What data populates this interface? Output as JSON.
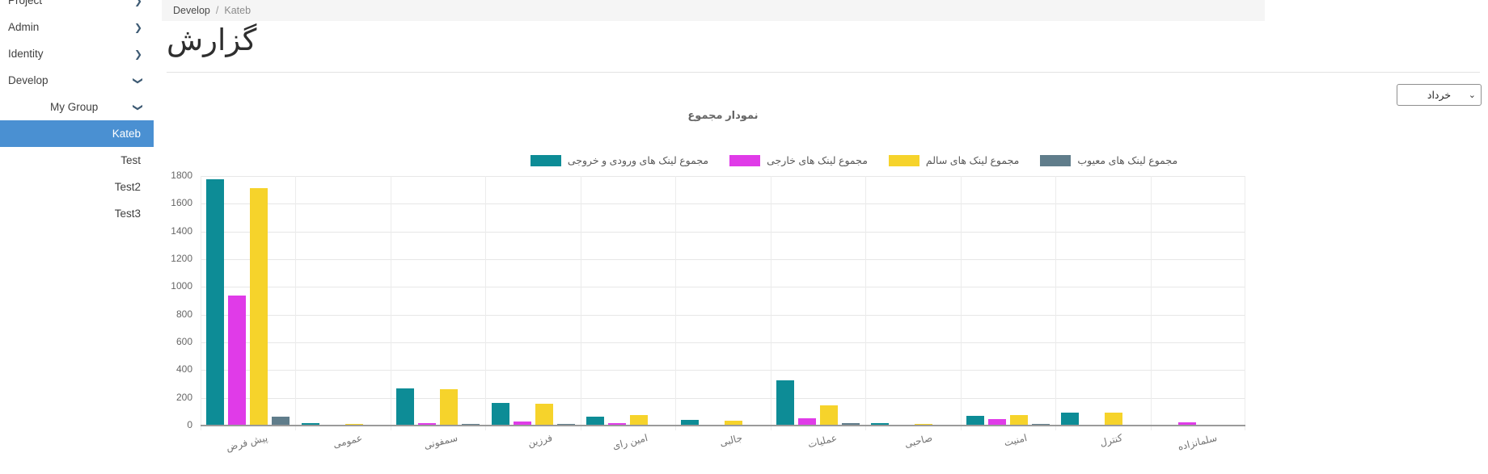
{
  "sidebar": {
    "items": [
      {
        "label": "Project",
        "level": 1,
        "expandable": true,
        "state": "collapsed",
        "icon": "chevron-right-icon",
        "selected": false
      },
      {
        "label": "Admin",
        "level": 1,
        "expandable": true,
        "state": "collapsed",
        "icon": "chevron-right-icon",
        "selected": false
      },
      {
        "label": "Identity",
        "level": 1,
        "expandable": true,
        "state": "collapsed",
        "icon": "chevron-right-icon",
        "selected": false
      },
      {
        "label": "Develop",
        "level": 1,
        "expandable": true,
        "state": "expanded",
        "icon": "chevron-down-icon",
        "selected": false
      },
      {
        "label": "My Group",
        "level": 2,
        "expandable": true,
        "state": "expanded",
        "icon": "chevron-down-icon",
        "selected": false
      },
      {
        "label": "Kateb",
        "level": 3,
        "expandable": false,
        "state": "none",
        "icon": "",
        "selected": true
      },
      {
        "label": "Test",
        "level": 3,
        "expandable": false,
        "state": "none",
        "icon": "",
        "selected": false
      },
      {
        "label": "Test2",
        "level": 3,
        "expandable": false,
        "state": "none",
        "icon": "",
        "selected": false
      },
      {
        "label": "Test3",
        "level": 3,
        "expandable": false,
        "state": "none",
        "icon": "",
        "selected": false
      }
    ]
  },
  "breadcrumb": {
    "items": [
      "Develop",
      "Kateb"
    ],
    "separator": "/"
  },
  "page": {
    "title": "گزارش"
  },
  "filter": {
    "selected_value": "خرداد",
    "icon": "chevron-down-icon"
  },
  "colors": {
    "selected_row": "#4a90d2",
    "series_teal": "#0D8C96",
    "series_magenta": "#E03BE8",
    "series_yellow": "#F6D32B",
    "series_gray": "#607D8B"
  },
  "chart_data": {
    "type": "bar",
    "title": "نمودار مجموع",
    "categories": [
      "پیش فرض",
      "عمومی",
      "سمفونی",
      "فرزین",
      "امین رای",
      "جالبی",
      "عملیات",
      "صاحبی",
      "امنیت",
      "کنترل",
      "سلمانزاده"
    ],
    "series": [
      {
        "name": "مجموع لینک های ورودی و خروجی",
        "color": "#0D8C96",
        "values": [
          1770,
          12,
          265,
          160,
          60,
          33,
          320,
          14,
          65,
          90,
          0
        ]
      },
      {
        "name": "مجموع لینک های خارجی",
        "color": "#E03BE8",
        "values": [
          930,
          0,
          10,
          25,
          12,
          0,
          45,
          0,
          38,
          0,
          18
        ]
      },
      {
        "name": "مجموع لینک های سالم",
        "color": "#F6D32B",
        "values": [
          1705,
          8,
          255,
          152,
          68,
          28,
          140,
          8,
          70,
          85,
          0
        ]
      },
      {
        "name": "مجموع لینک های معیوب",
        "color": "#607D8B",
        "values": [
          60,
          0,
          5,
          8,
          0,
          0,
          10,
          0,
          4,
          0,
          0
        ]
      }
    ],
    "xlabel": "",
    "ylabel": "",
    "ylim": [
      0,
      1800
    ],
    "ytick_step": 200,
    "grid": true,
    "legend_position": "top"
  }
}
